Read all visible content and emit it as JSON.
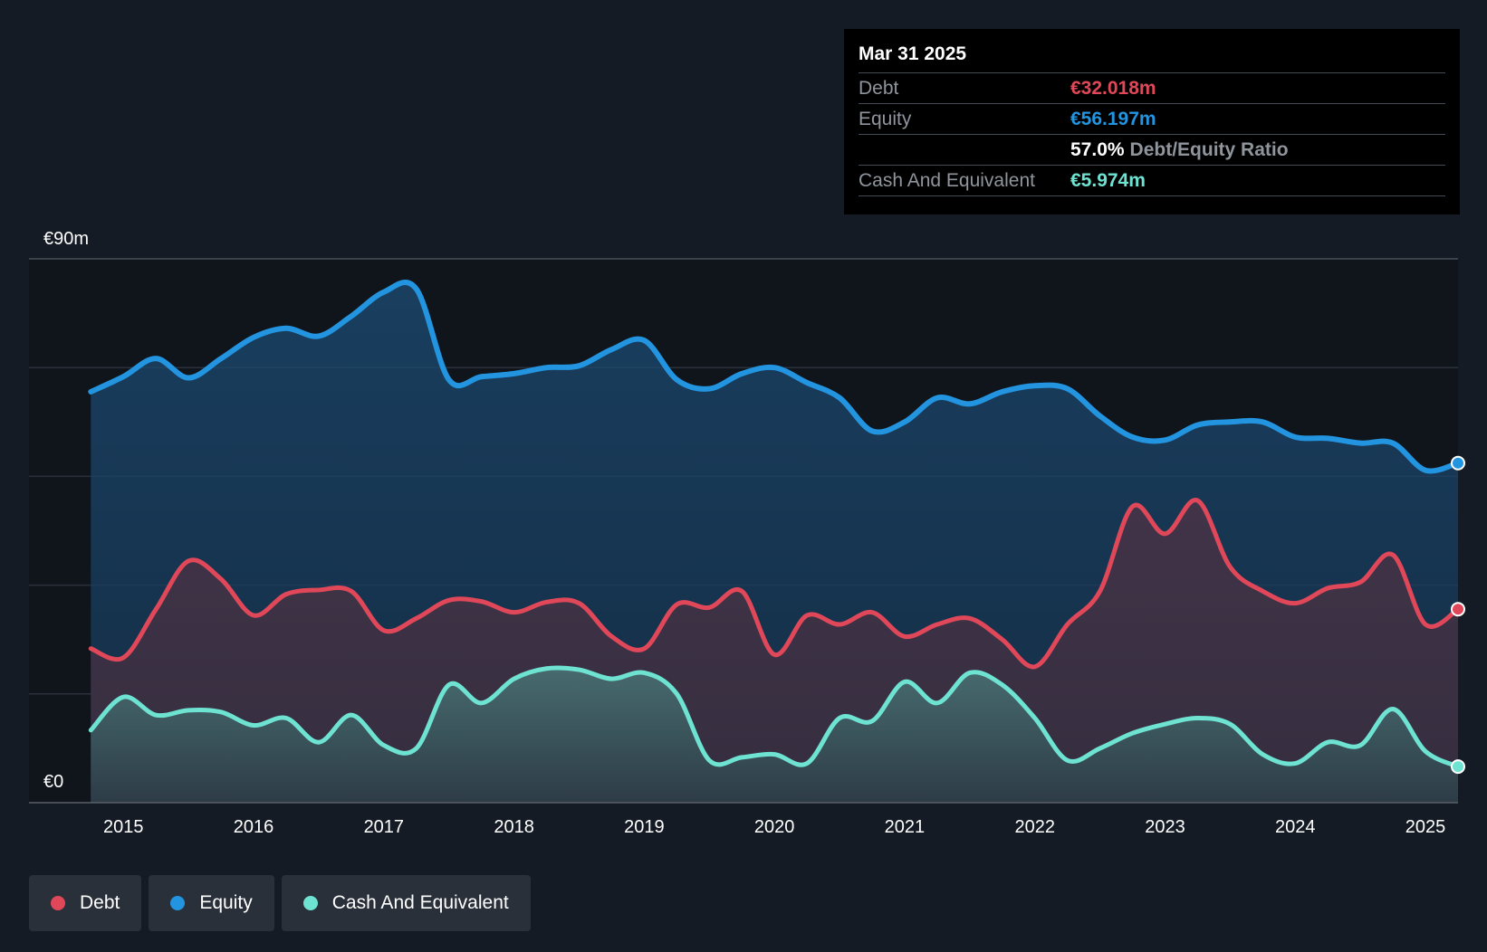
{
  "tooltip": {
    "date": "Mar 31 2025",
    "debt_label": "Debt",
    "debt_value": "€32.018m",
    "equity_label": "Equity",
    "equity_value": "€56.197m",
    "ratio_value": "57.0%",
    "ratio_label": "Debt/Equity Ratio",
    "cash_label": "Cash And Equivalent",
    "cash_value": "€5.974m"
  },
  "legend": {
    "debt": "Debt",
    "equity": "Equity",
    "cash": "Cash And Equivalent"
  },
  "colors": {
    "debt": "#e0485a",
    "equity": "#2394df",
    "cash": "#6ee3d2",
    "background": "#151b24"
  },
  "chart_data": {
    "type": "area",
    "y_axis": {
      "min": 0,
      "max": 90,
      "top_label": "€90m",
      "bottom_label": "€0",
      "unit": "€m"
    },
    "x_ticks": [
      {
        "label": "2015",
        "value": 2015
      },
      {
        "label": "2016",
        "value": 2016
      },
      {
        "label": "2017",
        "value": 2017
      },
      {
        "label": "2018",
        "value": 2018
      },
      {
        "label": "2019",
        "value": 2019
      },
      {
        "label": "2020",
        "value": 2020
      },
      {
        "label": "2021",
        "value": 2021
      },
      {
        "label": "2022",
        "value": 2022
      },
      {
        "label": "2023",
        "value": 2023
      },
      {
        "label": "2024",
        "value": 2024
      },
      {
        "label": "2025",
        "value": 2025
      }
    ],
    "x_range": [
      2014.72,
      2025.25
    ],
    "series": [
      {
        "name": "Equity",
        "key": "equity",
        "points": [
          [
            2014.75,
            68.0
          ],
          [
            2015.0,
            70.5
          ],
          [
            2015.25,
            73.5
          ],
          [
            2015.5,
            70.3
          ],
          [
            2015.75,
            73.5
          ],
          [
            2016.0,
            77.0
          ],
          [
            2016.25,
            78.5
          ],
          [
            2016.5,
            77.2
          ],
          [
            2016.75,
            80.5
          ],
          [
            2017.0,
            84.5
          ],
          [
            2017.25,
            85.0
          ],
          [
            2017.5,
            70.0
          ],
          [
            2017.75,
            70.5
          ],
          [
            2018.0,
            71.0
          ],
          [
            2018.25,
            72.0
          ],
          [
            2018.5,
            72.3
          ],
          [
            2018.75,
            75.0
          ],
          [
            2019.0,
            76.5
          ],
          [
            2019.25,
            70.0
          ],
          [
            2019.5,
            68.5
          ],
          [
            2019.75,
            71.0
          ],
          [
            2020.0,
            72.0
          ],
          [
            2020.25,
            69.5
          ],
          [
            2020.5,
            67.0
          ],
          [
            2020.75,
            61.5
          ],
          [
            2021.0,
            63.0
          ],
          [
            2021.25,
            67.0
          ],
          [
            2021.5,
            66.0
          ],
          [
            2021.75,
            68.0
          ],
          [
            2022.0,
            69.0
          ],
          [
            2022.25,
            68.5
          ],
          [
            2022.5,
            64.0
          ],
          [
            2022.75,
            60.5
          ],
          [
            2023.0,
            60.0
          ],
          [
            2023.25,
            62.5
          ],
          [
            2023.5,
            63.0
          ],
          [
            2023.75,
            63.0
          ],
          [
            2024.0,
            60.5
          ],
          [
            2024.25,
            60.3
          ],
          [
            2024.5,
            59.5
          ],
          [
            2024.75,
            59.5
          ],
          [
            2025.0,
            55.0
          ],
          [
            2025.25,
            56.197
          ]
        ]
      },
      {
        "name": "Debt",
        "key": "debt",
        "points": [
          [
            2014.75,
            25.5
          ],
          [
            2015.0,
            24.0
          ],
          [
            2015.25,
            32.0
          ],
          [
            2015.5,
            40.0
          ],
          [
            2015.75,
            37.0
          ],
          [
            2016.0,
            31.0
          ],
          [
            2016.25,
            34.5
          ],
          [
            2016.5,
            35.2
          ],
          [
            2016.75,
            35.0
          ],
          [
            2017.0,
            28.5
          ],
          [
            2017.25,
            30.5
          ],
          [
            2017.5,
            33.5
          ],
          [
            2017.75,
            33.3
          ],
          [
            2018.0,
            31.5
          ],
          [
            2018.25,
            33.2
          ],
          [
            2018.5,
            33.0
          ],
          [
            2018.75,
            27.5
          ],
          [
            2019.0,
            25.5
          ],
          [
            2019.25,
            32.8
          ],
          [
            2019.5,
            32.3
          ],
          [
            2019.75,
            35.0
          ],
          [
            2020.0,
            24.5
          ],
          [
            2020.25,
            31.0
          ],
          [
            2020.5,
            29.5
          ],
          [
            2020.75,
            31.5
          ],
          [
            2021.0,
            27.5
          ],
          [
            2021.25,
            29.5
          ],
          [
            2021.5,
            30.5
          ],
          [
            2021.75,
            27.0
          ],
          [
            2022.0,
            22.5
          ],
          [
            2022.25,
            29.5
          ],
          [
            2022.5,
            35.0
          ],
          [
            2022.75,
            49.0
          ],
          [
            2023.0,
            44.5
          ],
          [
            2023.25,
            50.0
          ],
          [
            2023.5,
            39.0
          ],
          [
            2023.75,
            35.0
          ],
          [
            2024.0,
            33.0
          ],
          [
            2024.25,
            35.5
          ],
          [
            2024.5,
            36.5
          ],
          [
            2024.75,
            41.0
          ],
          [
            2025.0,
            29.5
          ],
          [
            2025.25,
            32.018
          ]
        ]
      },
      {
        "name": "Cash And Equivalent",
        "key": "cash",
        "points": [
          [
            2014.75,
            12.0
          ],
          [
            2015.0,
            17.5
          ],
          [
            2015.25,
            14.5
          ],
          [
            2015.5,
            15.3
          ],
          [
            2015.75,
            15.0
          ],
          [
            2016.0,
            12.8
          ],
          [
            2016.25,
            14.0
          ],
          [
            2016.5,
            10.0
          ],
          [
            2016.75,
            14.5
          ],
          [
            2017.0,
            9.5
          ],
          [
            2017.25,
            9.0
          ],
          [
            2017.5,
            19.5
          ],
          [
            2017.75,
            16.5
          ],
          [
            2018.0,
            20.5
          ],
          [
            2018.25,
            22.2
          ],
          [
            2018.5,
            22.0
          ],
          [
            2018.75,
            20.5
          ],
          [
            2019.0,
            21.5
          ],
          [
            2019.25,
            18.0
          ],
          [
            2019.5,
            7.0
          ],
          [
            2019.75,
            7.5
          ],
          [
            2020.0,
            8.0
          ],
          [
            2020.25,
            6.5
          ],
          [
            2020.5,
            14.0
          ],
          [
            2020.75,
            13.5
          ],
          [
            2021.0,
            20.0
          ],
          [
            2021.25,
            16.5
          ],
          [
            2021.5,
            21.5
          ],
          [
            2021.75,
            19.5
          ],
          [
            2022.0,
            14.0
          ],
          [
            2022.25,
            7.0
          ],
          [
            2022.5,
            9.0
          ],
          [
            2022.75,
            11.5
          ],
          [
            2023.0,
            13.0
          ],
          [
            2023.25,
            14.0
          ],
          [
            2023.5,
            13.0
          ],
          [
            2023.75,
            8.0
          ],
          [
            2024.0,
            6.5
          ],
          [
            2024.25,
            10.0
          ],
          [
            2024.5,
            9.5
          ],
          [
            2024.75,
            15.5
          ],
          [
            2025.0,
            8.5
          ],
          [
            2025.25,
            5.974
          ]
        ]
      }
    ],
    "gridlines": [
      18,
      36,
      54,
      72,
      90
    ],
    "legend_position": "bottom-left"
  }
}
